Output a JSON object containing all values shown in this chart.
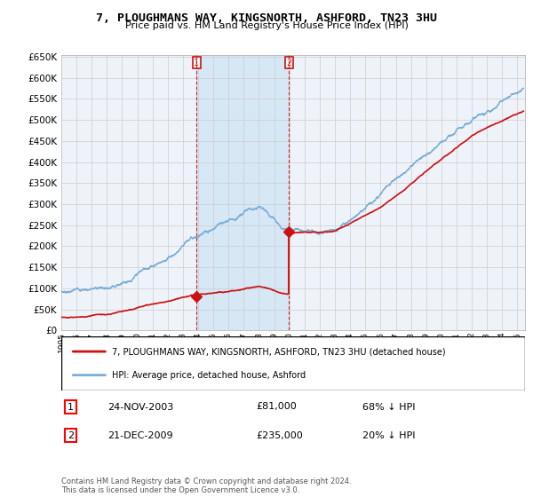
{
  "title": "7, PLOUGHMANS WAY, KINGSNORTH, ASHFORD, TN23 3HU",
  "subtitle": "Price paid vs. HM Land Registry's House Price Index (HPI)",
  "legend_line1": "7, PLOUGHMANS WAY, KINGSNORTH, ASHFORD, TN23 3HU (detached house)",
  "legend_line2": "HPI: Average price, detached house, Ashford",
  "transaction1_date": "24-NOV-2003",
  "transaction1_price": "£81,000",
  "transaction1_hpi": "68% ↓ HPI",
  "transaction2_date": "21-DEC-2009",
  "transaction2_price": "£235,000",
  "transaction2_hpi": "20% ↓ HPI",
  "footnote": "Contains HM Land Registry data © Crown copyright and database right 2024.\nThis data is licensed under the Open Government Licence v3.0.",
  "xmin": 1995.0,
  "xmax": 2025.5,
  "ymin": 0,
  "ymax": 650000,
  "yticks": [
    0,
    50000,
    100000,
    150000,
    200000,
    250000,
    300000,
    350000,
    400000,
    450000,
    500000,
    550000,
    600000,
    650000
  ],
  "hpi_color": "#7aaed6",
  "price_color": "#cc1111",
  "marker1_x": 2003.9,
  "marker1_y": 81000,
  "marker2_x": 2009.97,
  "marker2_y": 235000,
  "bg_color": "#ffffff",
  "grid_color": "#cccccc",
  "plot_bg": "#eef3fa",
  "shade_color": "#d0e4f5"
}
